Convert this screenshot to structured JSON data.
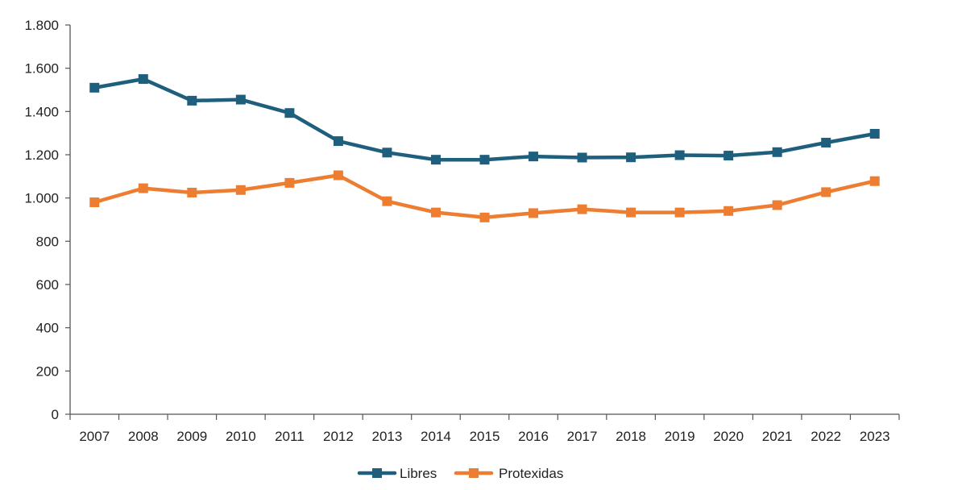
{
  "chart_data": {
    "type": "line",
    "title": "",
    "xlabel": "",
    "ylabel": "",
    "categories": [
      "2007",
      "2008",
      "2009",
      "2010",
      "2011",
      "2012",
      "2013",
      "2014",
      "2015",
      "2016",
      "2017",
      "2018",
      "2019",
      "2020",
      "2021",
      "2022",
      "2023"
    ],
    "ylim": [
      0,
      1800
    ],
    "yticks": [
      0,
      200,
      400,
      600,
      800,
      1000,
      1200,
      1400,
      1600,
      1800
    ],
    "ytick_labels": [
      "0",
      "200",
      "400",
      "600",
      "800",
      "1.000",
      "1.200",
      "1.400",
      "1.600",
      "1.800"
    ],
    "grid": false,
    "legend_position": "bottom",
    "series": [
      {
        "name": "Libres",
        "color": "#1f5f7e",
        "marker": "square",
        "values": [
          1510,
          1550,
          1450,
          1455,
          1393,
          1263,
          1210,
          1177,
          1177,
          1192,
          1187,
          1188,
          1198,
          1196,
          1212,
          1256,
          1297
        ]
      },
      {
        "name": "Protexidas",
        "color": "#ed7d31",
        "marker": "square",
        "values": [
          980,
          1045,
          1025,
          1037,
          1070,
          1105,
          985,
          933,
          910,
          930,
          948,
          933,
          933,
          940,
          967,
          1027,
          1078
        ]
      }
    ]
  }
}
